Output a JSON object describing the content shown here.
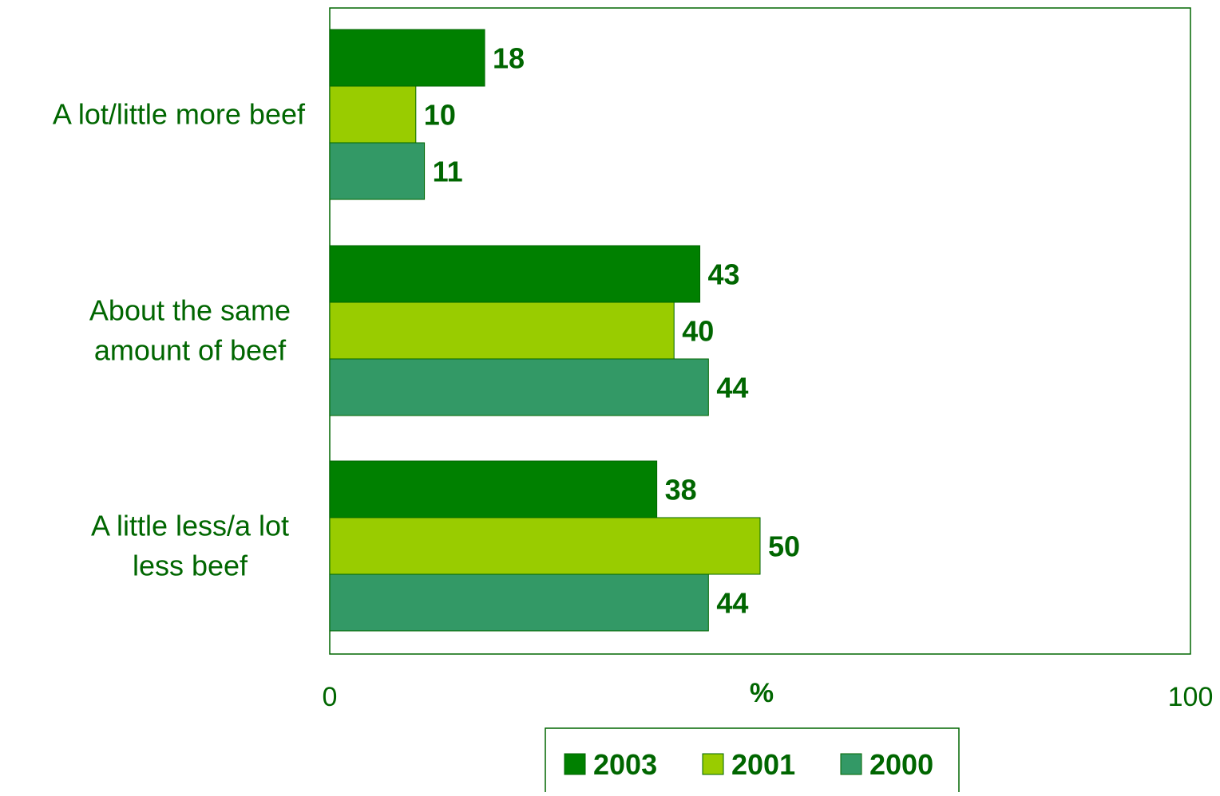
{
  "chart_data": {
    "type": "bar",
    "orientation": "horizontal",
    "categories": [
      [
        "A lot/little more beef"
      ],
      [
        "About the same",
        "amount of beef"
      ],
      [
        "A little less/a lot",
        "less beef"
      ]
    ],
    "series": [
      {
        "name": "2003",
        "values": [
          18,
          43,
          38
        ],
        "color": "#008000"
      },
      {
        "name": "2001",
        "values": [
          10,
          40,
          50
        ],
        "color": "#99cc00"
      },
      {
        "name": "2000",
        "values": [
          11,
          44,
          44
        ],
        "color": "#339966"
      }
    ],
    "xlabel": "%",
    "xlim": [
      0,
      100
    ],
    "x_tick_labels": [
      "0",
      "100"
    ],
    "data_label_color": "#006600",
    "grid": false,
    "legend_position": "bottom"
  }
}
